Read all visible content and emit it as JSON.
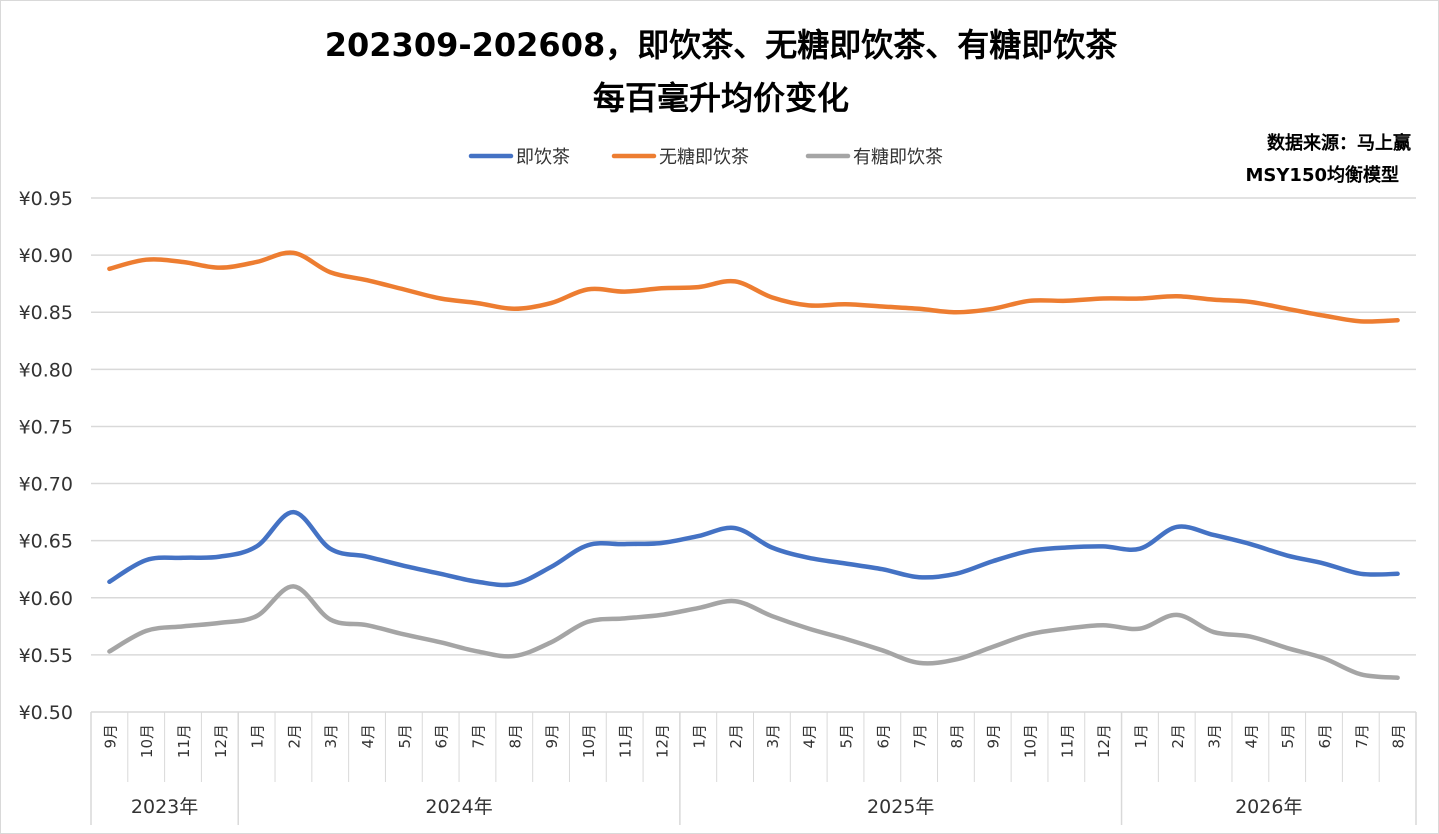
{
  "chart_data": {
    "type": "line",
    "title_line1": "202309-202608，即饮茶、无糖即饮茶、有糖即饮茶",
    "title_line2": "每百毫升均价变化",
    "source_line1": "数据来源：马上赢",
    "source_line2": "MSY150均衡模型",
    "xlabel": "",
    "ylabel": "",
    "ylim": [
      0.5,
      0.95
    ],
    "y_ticks": [
      "¥0.95",
      "¥0.90",
      "¥0.85",
      "¥0.80",
      "¥0.75",
      "¥0.70",
      "¥0.65",
      "¥0.60",
      "¥0.55",
      "¥0.50"
    ],
    "y_tick_values": [
      0.95,
      0.9,
      0.85,
      0.8,
      0.75,
      0.7,
      0.65,
      0.6,
      0.55,
      0.5
    ],
    "categories": [
      "9月",
      "10月",
      "11月",
      "12月",
      "1月",
      "2月",
      "3月",
      "4月",
      "5月",
      "6月",
      "7月",
      "8月",
      "9月",
      "10月",
      "11月",
      "12月",
      "1月",
      "2月",
      "3月",
      "4月",
      "5月",
      "6月",
      "7月",
      "8月",
      "9月",
      "10月",
      "11月",
      "12月",
      "1月",
      "2月",
      "3月",
      "4月",
      "5月",
      "6月",
      "7月",
      "8月"
    ],
    "year_groups": [
      {
        "label": "2023年",
        "count": 4
      },
      {
        "label": "2024年",
        "count": 12
      },
      {
        "label": "2025年",
        "count": 12
      },
      {
        "label": "2026年",
        "count": 8
      }
    ],
    "grid": true,
    "legend_position": "top",
    "series": [
      {
        "name": "即饮茶",
        "color": "#4472C4",
        "values": [
          0.614,
          0.633,
          0.635,
          0.636,
          0.645,
          0.675,
          0.643,
          0.636,
          0.628,
          0.621,
          0.614,
          0.612,
          0.627,
          0.646,
          0.647,
          0.648,
          0.654,
          0.661,
          0.644,
          0.635,
          0.63,
          0.625,
          0.618,
          0.621,
          0.632,
          0.641,
          0.644,
          0.645,
          0.643,
          0.662,
          0.655,
          0.647,
          0.637,
          0.63,
          0.621,
          0.621
        ]
      },
      {
        "name": "无糖即饮茶",
        "color": "#ED7D31",
        "values": [
          0.888,
          0.896,
          0.894,
          0.889,
          0.894,
          0.902,
          0.885,
          0.878,
          0.87,
          0.862,
          0.858,
          0.853,
          0.858,
          0.87,
          0.868,
          0.871,
          0.872,
          0.877,
          0.863,
          0.856,
          0.857,
          0.855,
          0.853,
          0.85,
          0.853,
          0.86,
          0.86,
          0.862,
          0.862,
          0.864,
          0.861,
          0.859,
          0.853,
          0.847,
          0.842,
          0.843
        ]
      },
      {
        "name": "有糖即饮茶",
        "color": "#A5A5A5",
        "values": [
          0.553,
          0.571,
          0.575,
          0.578,
          0.584,
          0.61,
          0.581,
          0.576,
          0.568,
          0.561,
          0.553,
          0.549,
          0.561,
          0.579,
          0.582,
          0.585,
          0.591,
          0.597,
          0.584,
          0.573,
          0.564,
          0.554,
          0.543,
          0.546,
          0.557,
          0.568,
          0.573,
          0.576,
          0.573,
          0.585,
          0.57,
          0.566,
          0.556,
          0.547,
          0.533,
          0.53
        ]
      }
    ]
  }
}
